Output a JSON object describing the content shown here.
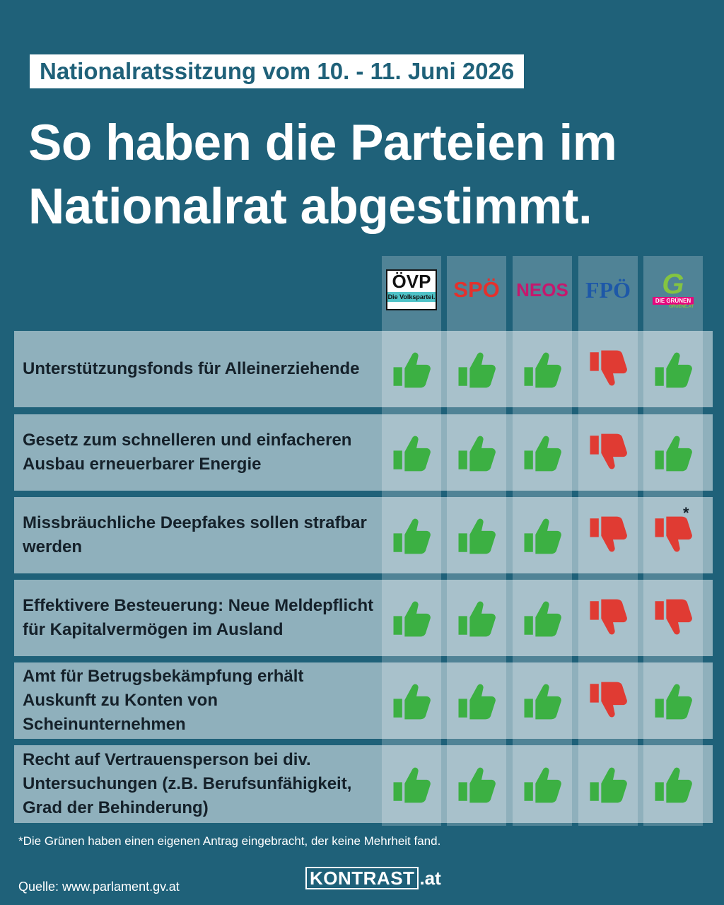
{
  "kicker": "Nationalratssitzung vom 10. - 11. Juni 2026",
  "headline": "So haben die Parteien im Nationalrat abgestimmt.",
  "parties": [
    {
      "id": "oevp",
      "name": "ÖVP",
      "sub": "Die Volkspartei."
    },
    {
      "id": "spoe",
      "name": "SPÖ"
    },
    {
      "id": "neos",
      "name": "NEOS"
    },
    {
      "id": "fpoe",
      "name": "FPÖ"
    },
    {
      "id": "gruene",
      "name": "G",
      "sub": "DIE GRÜNEN",
      "url": "GRUENE.AT"
    }
  ],
  "colors": {
    "yes": "#3cb043",
    "no": "#e03b33",
    "background": "#1f6179"
  },
  "rows": [
    {
      "topic": "Unterstützungsfonds für Alleinerziehende",
      "votes": [
        "yes",
        "yes",
        "yes",
        "no",
        "yes"
      ]
    },
    {
      "topic": "Gesetz zum schnelleren und einfacheren Ausbau erneuerbarer Energie",
      "votes": [
        "yes",
        "yes",
        "yes",
        "no",
        "yes"
      ]
    },
    {
      "topic": "Missbräuchliche Deepfakes sollen strafbar werden",
      "votes": [
        "yes",
        "yes",
        "yes",
        "no",
        "no"
      ],
      "marker": "*"
    },
    {
      "topic": "Effektivere Besteuerung: Neue Meldepflicht für Kapitalvermögen im Ausland",
      "votes": [
        "yes",
        "yes",
        "yes",
        "no",
        "no"
      ]
    },
    {
      "topic": "Amt für Betrugsbekämpfung erhält Auskunft zu Konten von Scheinunternehmen",
      "votes": [
        "yes",
        "yes",
        "yes",
        "no",
        "yes"
      ]
    },
    {
      "topic": "Recht auf Vertrauensperson bei div. Untersuchungen (z.B. Berufsunfähigkeit, Grad der Behinderung)",
      "votes": [
        "yes",
        "yes",
        "yes",
        "yes",
        "yes"
      ]
    }
  ],
  "footnote": "*Die Grünen haben einen eigenen Antrag eingebracht, der keine Mehrheit fand.",
  "source": "Quelle: www.parlament.gv.at",
  "brand": {
    "box": "KONTRAST",
    "tld": ".at"
  }
}
